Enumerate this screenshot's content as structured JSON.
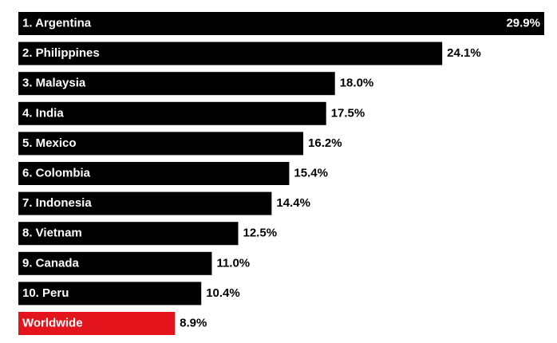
{
  "chart_data": {
    "type": "bar",
    "orientation": "horizontal",
    "categories": [
      "1. Argentina",
      "2. Philippines",
      "3. Malaysia",
      "4. India",
      "5. Mexico",
      "6. Colombia",
      "7. Indonesia",
      "8. Vietnam",
      "9. Canada",
      "10. Peru",
      "Worldwide"
    ],
    "values": [
      29.9,
      24.1,
      18.0,
      17.5,
      16.2,
      15.4,
      14.4,
      12.5,
      11.0,
      10.4,
      8.9
    ],
    "value_labels": [
      "29.9%",
      "24.1%",
      "18.0%",
      "17.5%",
      "16.2%",
      "15.4%",
      "14.4%",
      "12.5%",
      "11.0%",
      "10.4%",
      "8.9%"
    ],
    "colors": [
      "#000000",
      "#000000",
      "#000000",
      "#000000",
      "#000000",
      "#000000",
      "#000000",
      "#000000",
      "#000000",
      "#000000",
      "#e3141b"
    ]
  }
}
